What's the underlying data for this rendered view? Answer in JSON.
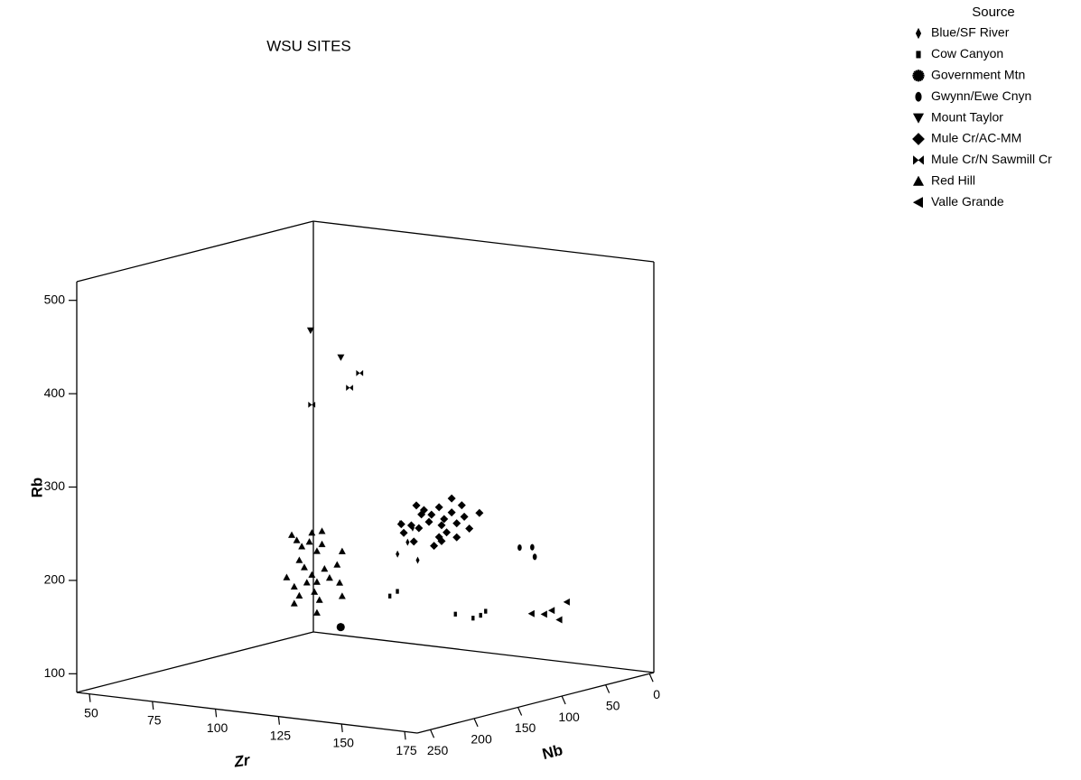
{
  "chart_data": {
    "type": "scatter3d",
    "title": "WSU SITES",
    "x_label": "Zr",
    "y_label": "Nb",
    "z_label": "Rb",
    "xlim": [
      45,
      180
    ],
    "ylim": [
      -5,
      265
    ],
    "zlim": [
      80,
      520
    ],
    "xticks": [
      50,
      75,
      100,
      125,
      150,
      175
    ],
    "yticks": [
      0,
      50,
      100,
      150,
      200,
      250
    ],
    "zticks": [
      100,
      200,
      300,
      400,
      500
    ],
    "legend_title": "Source",
    "legend_position": "top-right",
    "color": "#000000",
    "series": [
      {
        "name": "Blue/SF River",
        "marker": "thin-diamond",
        "x": [
          95,
          94,
          98,
          102,
          100
        ],
        "y": [
          40,
          40,
          40,
          40,
          40
        ],
        "z": [
          223,
          190,
          204,
          186,
          220
        ]
      },
      {
        "name": "Cow Canyon",
        "marker": "thin-square",
        "x": [
          84,
          87,
          110,
          117,
          120,
          122
        ],
        "y": [
          20,
          20,
          20,
          20,
          20,
          20
        ],
        "z": [
          137,
          143,
          126,
          124,
          128,
          133
        ]
      },
      {
        "name": "Government Mtn",
        "marker": "star",
        "x": [
          68
        ],
        "y": [
          30
        ],
        "z": [
          101
        ]
      },
      {
        "name": "Gwynn/Ewe Cnyn",
        "marker": "ellipse",
        "x": [
          132,
          137,
          138
        ],
        "y": [
          10,
          10,
          10
        ],
        "z": [
          202,
          204,
          194
        ]
      },
      {
        "name": "Mount Taylor",
        "marker": "triangle-down",
        "x": [
          63,
          75
        ],
        "y": [
          50,
          50
        ],
        "z": [
          422,
          397
        ]
      },
      {
        "name": "Mule Cr/AC-MM",
        "marker": "diamond",
        "x": [
          98,
          101,
          104,
          107,
          109,
          112,
          114,
          117,
          119,
          110,
          107,
          103,
          99,
          96,
          93,
          92,
          123,
          112,
          116,
          108,
          105,
          114,
          97,
          100,
          108
        ],
        "y": [
          30,
          30,
          30,
          30,
          30,
          30,
          30,
          30,
          30,
          30,
          30,
          30,
          30,
          30,
          30,
          30,
          30,
          30,
          30,
          30,
          30,
          30,
          30,
          30,
          30
        ],
        "z": [
          241,
          237,
          233,
          242,
          230,
          238,
          227,
          235,
          223,
          216,
          210,
          225,
          217,
          219,
          210,
          219,
          241,
          253,
          247,
          206,
          200,
          212,
          202,
          232,
          223
        ]
      },
      {
        "name": "Mule Cr/N Sawmill Cr",
        "marker": "bowtie",
        "x": [
          60,
          75,
          79
        ],
        "y": [
          40,
          40,
          40
        ],
        "z": [
          339,
          362,
          379
        ]
      },
      {
        "name": "Red Hill",
        "marker": "triangle-up",
        "x": [
          59,
          61,
          63,
          66,
          69,
          71,
          62,
          64,
          67,
          69,
          72,
          60,
          62,
          65,
          68,
          70,
          74,
          77,
          79,
          67,
          71,
          60,
          69,
          78,
          79,
          57
        ],
        "y": [
          60,
          60,
          60,
          60,
          60,
          60,
          60,
          60,
          60,
          60,
          60,
          60,
          60,
          60,
          60,
          60,
          60,
          60,
          60,
          60,
          60,
          60,
          60,
          60,
          60,
          60
        ],
        "z": [
          204,
          199,
          193,
          199,
          190,
          198,
          178,
          171,
          164,
          157,
          172,
          149,
          140,
          155,
          146,
          138,
          163,
          178,
          193,
          209,
          212,
          131,
          124,
          159,
          145,
          158
        ]
      },
      {
        "name": "Valle Grande",
        "marker": "triangle-left",
        "x": [
          135,
          140,
          143,
          146,
          149
        ],
        "y": [
          5,
          5,
          5,
          5,
          5
        ],
        "z": [
          131,
          132,
          137,
          128,
          148
        ]
      }
    ]
  }
}
